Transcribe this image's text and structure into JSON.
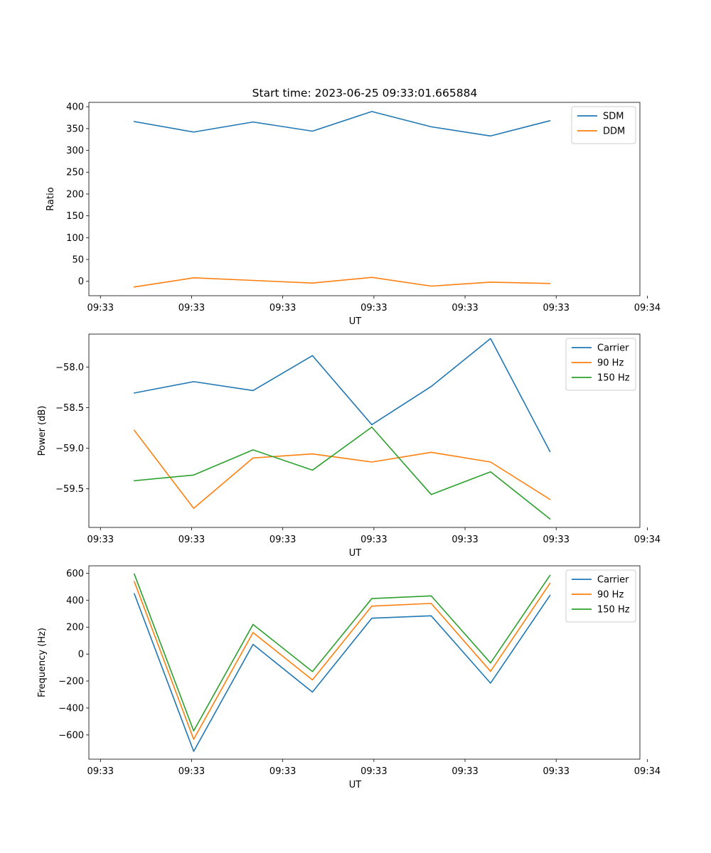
{
  "chart_data": [
    {
      "type": "line",
      "title": "Start time: 2023-06-25 09:33:01.665884",
      "xlabel": "UT",
      "ylabel": "Ratio",
      "x": [
        1,
        2,
        3,
        4,
        5,
        6,
        7,
        8
      ],
      "xlim": [
        0.235,
        9.515
      ],
      "x_ticks": [
        0.43,
        1.965,
        3.5,
        5.035,
        6.57,
        8.105,
        9.64
      ],
      "x_tick_labels": [
        "09:33",
        "09:33",
        "09:33",
        "09:33",
        "09:33",
        "09:33",
        "09:34"
      ],
      "ylim": [
        -33,
        410
      ],
      "y_ticks": [
        0,
        50,
        100,
        150,
        200,
        250,
        300,
        350,
        400
      ],
      "y_tick_labels": [
        "0",
        "50",
        "100",
        "150",
        "200",
        "250",
        "300",
        "350",
        "400"
      ],
      "grid": false,
      "legend": "top-right",
      "series": [
        {
          "name": "SDM",
          "color": "#1f77b4",
          "values": [
            366,
            342,
            365,
            344,
            389,
            354,
            333,
            368
          ]
        },
        {
          "name": "DDM",
          "color": "#ff7f0e",
          "values": [
            -13,
            8,
            2,
            -4,
            9,
            -11,
            -2,
            -5
          ]
        }
      ]
    },
    {
      "type": "line",
      "xlabel": "UT",
      "ylabel": "Power (dB)",
      "x": [
        1,
        2,
        3,
        4,
        5,
        6,
        7,
        8
      ],
      "xlim": [
        0.235,
        9.515
      ],
      "x_ticks": [
        0.43,
        1.965,
        3.5,
        5.035,
        6.57,
        8.105,
        9.64
      ],
      "x_tick_labels": [
        "09:33",
        "09:33",
        "09:33",
        "09:33",
        "09:33",
        "09:33",
        "09:34"
      ],
      "ylim": [
        -59.975,
        -57.595
      ],
      "y_ticks": [
        -58.0,
        -58.5,
        -59.0,
        -59.5
      ],
      "y_tick_labels": [
        "−58.0",
        "−58.5",
        "−59.0",
        "−59.5"
      ],
      "grid": false,
      "legend": "top-right",
      "series": [
        {
          "name": "Carrier",
          "color": "#1f77b4",
          "values": [
            -58.32,
            -58.18,
            -58.29,
            -57.86,
            -58.71,
            -58.24,
            -57.65,
            -59.04
          ]
        },
        {
          "name": "90 Hz",
          "color": "#ff7f0e",
          "values": [
            -58.78,
            -59.74,
            -59.12,
            -59.07,
            -59.17,
            -59.05,
            -59.17,
            -59.63
          ]
        },
        {
          "name": "150 Hz",
          "color": "#2ca02c",
          "values": [
            -59.4,
            -59.33,
            -59.02,
            -59.27,
            -58.74,
            -59.57,
            -59.29,
            -59.87
          ]
        }
      ]
    },
    {
      "type": "line",
      "xlabel": "UT",
      "ylabel": "Frequency (Hz)",
      "x": [
        1,
        2,
        3,
        4,
        5,
        6,
        7,
        8
      ],
      "xlim": [
        0.235,
        9.515
      ],
      "x_ticks": [
        0.43,
        1.965,
        3.5,
        5.035,
        6.57,
        8.105,
        9.64
      ],
      "x_tick_labels": [
        "09:33",
        "09:33",
        "09:33",
        "09:33",
        "09:33",
        "09:33",
        "09:34"
      ],
      "ylim": [
        -780,
        655
      ],
      "y_ticks": [
        600,
        400,
        200,
        0,
        -200,
        -400,
        -600
      ],
      "y_tick_labels": [
        "600",
        "400",
        "200",
        "0",
        "−200",
        "−400",
        "−600"
      ],
      "grid": false,
      "legend": "top-right",
      "series": [
        {
          "name": "Carrier",
          "color": "#1f77b4",
          "values": [
            448,
            -722,
            72,
            -282,
            266,
            284,
            -216,
            435
          ]
        },
        {
          "name": "90 Hz",
          "color": "#ff7f0e",
          "values": [
            538,
            -632,
            160,
            -192,
            356,
            376,
            -128,
            525
          ]
        },
        {
          "name": "150 Hz",
          "color": "#2ca02c",
          "values": [
            594,
            -570,
            220,
            -130,
            412,
            432,
            -66,
            584
          ]
        }
      ]
    }
  ]
}
